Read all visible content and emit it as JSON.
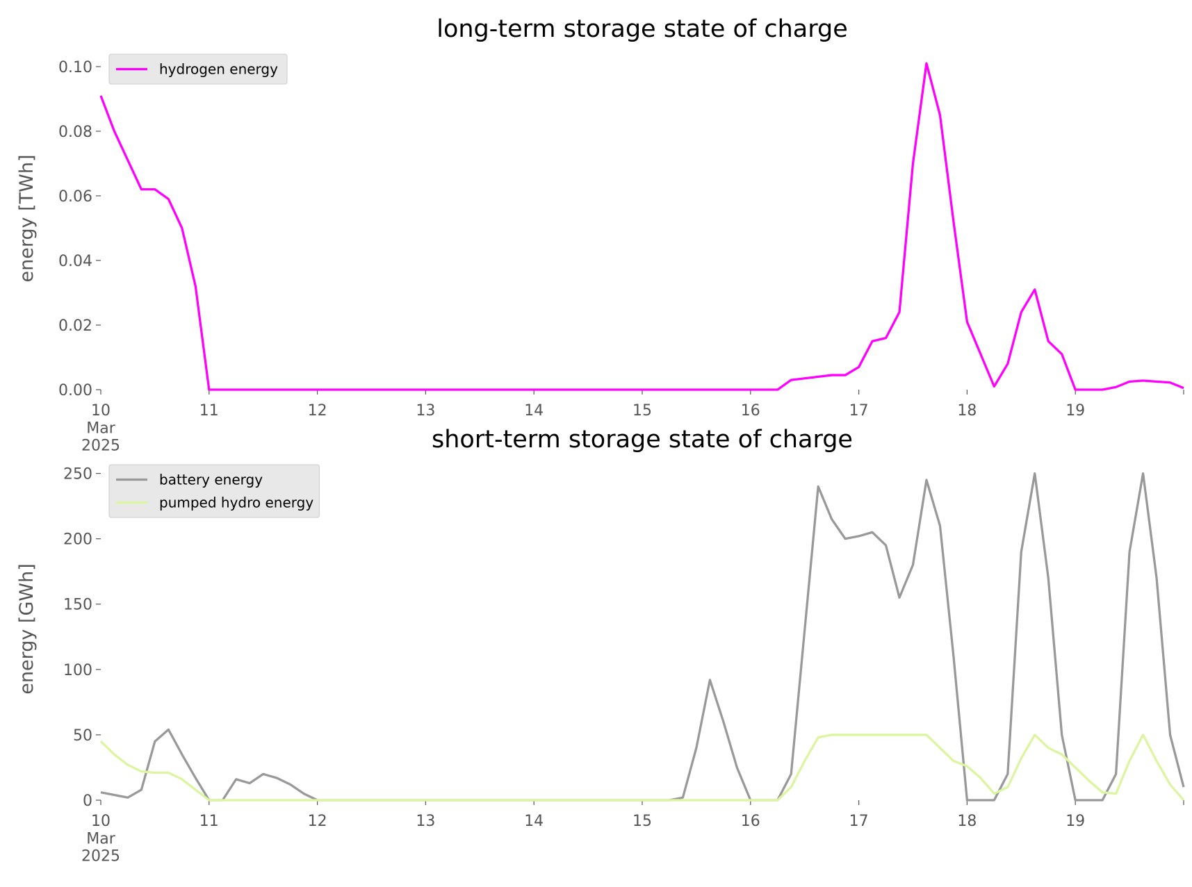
{
  "chart_data": [
    {
      "type": "line",
      "title": "long-term storage state of charge",
      "y_label": "energy [TWh]",
      "legend": "upper left",
      "grid": false,
      "x": [
        "2025-03-10T00:00",
        "2025-03-10T03:00",
        "2025-03-10T06:00",
        "2025-03-10T09:00",
        "2025-03-10T12:00",
        "2025-03-10T15:00",
        "2025-03-10T18:00",
        "2025-03-10T21:00",
        "2025-03-11T00:00",
        "2025-03-11T03:00",
        "2025-03-11T06:00",
        "2025-03-11T09:00",
        "2025-03-11T12:00",
        "2025-03-11T15:00",
        "2025-03-11T18:00",
        "2025-03-11T21:00",
        "2025-03-12T00:00",
        "2025-03-12T03:00",
        "2025-03-12T06:00",
        "2025-03-12T09:00",
        "2025-03-12T12:00",
        "2025-03-12T15:00",
        "2025-03-12T18:00",
        "2025-03-12T21:00",
        "2025-03-13T00:00",
        "2025-03-13T03:00",
        "2025-03-13T06:00",
        "2025-03-13T09:00",
        "2025-03-13T12:00",
        "2025-03-13T15:00",
        "2025-03-13T18:00",
        "2025-03-13T21:00",
        "2025-03-14T00:00",
        "2025-03-14T03:00",
        "2025-03-14T06:00",
        "2025-03-14T09:00",
        "2025-03-14T12:00",
        "2025-03-14T15:00",
        "2025-03-14T18:00",
        "2025-03-14T21:00",
        "2025-03-15T00:00",
        "2025-03-15T03:00",
        "2025-03-15T06:00",
        "2025-03-15T09:00",
        "2025-03-15T12:00",
        "2025-03-15T15:00",
        "2025-03-15T18:00",
        "2025-03-15T21:00",
        "2025-03-16T00:00",
        "2025-03-16T03:00",
        "2025-03-16T06:00",
        "2025-03-16T09:00",
        "2025-03-16T12:00",
        "2025-03-16T15:00",
        "2025-03-16T18:00",
        "2025-03-16T21:00",
        "2025-03-17T00:00",
        "2025-03-17T03:00",
        "2025-03-17T06:00",
        "2025-03-17T09:00",
        "2025-03-17T12:00",
        "2025-03-17T15:00",
        "2025-03-17T18:00",
        "2025-03-17T21:00",
        "2025-03-18T00:00",
        "2025-03-18T03:00",
        "2025-03-18T06:00",
        "2025-03-18T09:00",
        "2025-03-18T12:00",
        "2025-03-18T15:00",
        "2025-03-18T18:00",
        "2025-03-18T21:00",
        "2025-03-19T00:00",
        "2025-03-19T03:00",
        "2025-03-19T06:00",
        "2025-03-19T09:00",
        "2025-03-19T12:00",
        "2025-03-19T15:00",
        "2025-03-19T18:00",
        "2025-03-19T21:00",
        "2025-03-20T00:00"
      ],
      "xlim": [
        "2025-03-10T00:00",
        "2025-03-20T00:00"
      ],
      "xticks": [
        {
          "value": "2025-03-10T00:00",
          "label": "10\nMar\n2025"
        },
        {
          "value": "2025-03-11T00:00",
          "label": "11"
        },
        {
          "value": "2025-03-12T00:00",
          "label": "12"
        },
        {
          "value": "2025-03-13T00:00",
          "label": "13"
        },
        {
          "value": "2025-03-14T00:00",
          "label": "14"
        },
        {
          "value": "2025-03-15T00:00",
          "label": "15"
        },
        {
          "value": "2025-03-16T00:00",
          "label": "16"
        },
        {
          "value": "2025-03-17T00:00",
          "label": "17"
        },
        {
          "value": "2025-03-18T00:00",
          "label": "18"
        },
        {
          "value": "2025-03-19T00:00",
          "label": "19"
        },
        {
          "value": "2025-03-20T00:00"
        }
      ],
      "ylim": [
        0,
        0.106
      ],
      "yticks": [
        {
          "value": 0,
          "label": "0.00"
        },
        {
          "value": 0.02,
          "label": "0.02"
        },
        {
          "value": 0.04,
          "label": "0.04"
        },
        {
          "value": 0.06,
          "label": "0.06"
        },
        {
          "value": 0.08,
          "label": "0.08"
        },
        {
          "value": 0.1,
          "label": "0.10"
        }
      ],
      "series": [
        {
          "name": "hydrogen energy",
          "color": "#ff00ff",
          "values": [
            0.091,
            0.08,
            0.071,
            0.062,
            0.062,
            0.059,
            0.05,
            0.032,
            0,
            0,
            0,
            0,
            0,
            0,
            0,
            0,
            0,
            0,
            0,
            0,
            0,
            0,
            0,
            0,
            0,
            0,
            0,
            0,
            0,
            0,
            0,
            0,
            0,
            0,
            0,
            0,
            0,
            0,
            0,
            0,
            0,
            0,
            0,
            0,
            0,
            0,
            0,
            0,
            0,
            0,
            0,
            0.003,
            0.0035,
            0.004,
            0.0045,
            0.0045,
            0.007,
            0.015,
            0.016,
            0.024,
            0.07,
            0.101,
            0.085,
            0.052,
            0.021,
            0.011,
            0.001,
            0.008,
            0.024,
            0.031,
            0.015,
            0.011,
            0,
            0,
            0,
            0.0008,
            0.0025,
            0.0028,
            0.0025,
            0.0022,
            0.0005
          ]
        }
      ]
    },
    {
      "type": "line",
      "title": "short-term storage state of charge",
      "y_label": "energy [GWh]",
      "legend": "upper left",
      "grid": false,
      "x": [
        "2025-03-10T00:00",
        "2025-03-10T03:00",
        "2025-03-10T06:00",
        "2025-03-10T09:00",
        "2025-03-10T12:00",
        "2025-03-10T15:00",
        "2025-03-10T18:00",
        "2025-03-10T21:00",
        "2025-03-11T00:00",
        "2025-03-11T03:00",
        "2025-03-11T06:00",
        "2025-03-11T09:00",
        "2025-03-11T12:00",
        "2025-03-11T15:00",
        "2025-03-11T18:00",
        "2025-03-11T21:00",
        "2025-03-12T00:00",
        "2025-03-12T03:00",
        "2025-03-12T06:00",
        "2025-03-12T09:00",
        "2025-03-12T12:00",
        "2025-03-12T15:00",
        "2025-03-12T18:00",
        "2025-03-12T21:00",
        "2025-03-13T00:00",
        "2025-03-13T03:00",
        "2025-03-13T06:00",
        "2025-03-13T09:00",
        "2025-03-13T12:00",
        "2025-03-13T15:00",
        "2025-03-13T18:00",
        "2025-03-13T21:00",
        "2025-03-14T00:00",
        "2025-03-14T03:00",
        "2025-03-14T06:00",
        "2025-03-14T09:00",
        "2025-03-14T12:00",
        "2025-03-14T15:00",
        "2025-03-14T18:00",
        "2025-03-14T21:00",
        "2025-03-15T00:00",
        "2025-03-15T03:00",
        "2025-03-15T06:00",
        "2025-03-15T09:00",
        "2025-03-15T12:00",
        "2025-03-15T15:00",
        "2025-03-15T18:00",
        "2025-03-15T21:00",
        "2025-03-16T00:00",
        "2025-03-16T03:00",
        "2025-03-16T06:00",
        "2025-03-16T09:00",
        "2025-03-16T12:00",
        "2025-03-16T15:00",
        "2025-03-16T18:00",
        "2025-03-16T21:00",
        "2025-03-17T00:00",
        "2025-03-17T03:00",
        "2025-03-17T06:00",
        "2025-03-17T09:00",
        "2025-03-17T12:00",
        "2025-03-17T15:00",
        "2025-03-17T18:00",
        "2025-03-17T21:00",
        "2025-03-18T00:00",
        "2025-03-18T03:00",
        "2025-03-18T06:00",
        "2025-03-18T09:00",
        "2025-03-18T12:00",
        "2025-03-18T15:00",
        "2025-03-18T18:00",
        "2025-03-18T21:00",
        "2025-03-19T00:00",
        "2025-03-19T03:00",
        "2025-03-19T06:00",
        "2025-03-19T09:00",
        "2025-03-19T12:00",
        "2025-03-19T15:00",
        "2025-03-19T18:00",
        "2025-03-19T21:00",
        "2025-03-20T00:00"
      ],
      "xlim": [
        "2025-03-10T00:00",
        "2025-03-20T00:00"
      ],
      "xticks": [
        {
          "value": "2025-03-10T00:00",
          "label": "10\nMar\n2025"
        },
        {
          "value": "2025-03-11T00:00",
          "label": "11"
        },
        {
          "value": "2025-03-12T00:00",
          "label": "12"
        },
        {
          "value": "2025-03-13T00:00",
          "label": "13"
        },
        {
          "value": "2025-03-14T00:00",
          "label": "14"
        },
        {
          "value": "2025-03-15T00:00",
          "label": "15"
        },
        {
          "value": "2025-03-16T00:00",
          "label": "16"
        },
        {
          "value": "2025-03-17T00:00",
          "label": "17"
        },
        {
          "value": "2025-03-18T00:00",
          "label": "18"
        },
        {
          "value": "2025-03-19T00:00",
          "label": "19"
        },
        {
          "value": "2025-03-20T00:00"
        }
      ],
      "ylim": [
        0,
        262
      ],
      "yticks": [
        0,
        50,
        100,
        150,
        200,
        250
      ],
      "series": [
        {
          "name": "battery energy",
          "color": "#999999",
          "values": [
            6,
            4,
            2,
            8,
            45,
            54,
            35,
            17,
            0,
            0,
            16,
            13,
            20,
            17,
            12,
            5,
            0,
            0,
            0,
            0,
            0,
            0,
            0,
            0,
            0,
            0,
            0,
            0,
            0,
            0,
            0,
            0,
            0,
            0,
            0,
            0,
            0,
            0,
            0,
            0,
            0,
            0,
            0,
            2,
            40,
            92,
            60,
            25,
            0,
            0,
            0,
            20,
            130,
            240,
            215,
            200,
            202,
            205,
            195,
            155,
            180,
            245,
            210,
            110,
            0,
            0,
            0,
            20,
            190,
            250,
            170,
            50,
            0,
            0,
            0,
            20,
            190,
            250,
            170,
            50,
            10
          ]
        },
        {
          "name": "pumped hydro energy",
          "color": "#dcf5a0",
          "values": [
            45,
            35,
            27,
            22,
            21,
            21,
            16,
            8,
            0,
            0,
            0,
            0,
            0,
            0,
            0,
            0,
            0,
            0,
            0,
            0,
            0,
            0,
            0,
            0,
            0,
            0,
            0,
            0,
            0,
            0,
            0,
            0,
            0,
            0,
            0,
            0,
            0,
            0,
            0,
            0,
            0,
            0,
            0,
            0,
            0,
            0,
            0,
            0,
            0,
            0,
            0,
            10,
            30,
            48,
            50,
            50,
            50,
            50,
            50,
            50,
            50,
            50,
            40,
            30,
            26,
            17,
            5,
            10,
            32,
            50,
            40,
            35,
            25,
            15,
            6,
            5,
            30,
            50,
            30,
            12,
            0
          ]
        }
      ]
    }
  ]
}
